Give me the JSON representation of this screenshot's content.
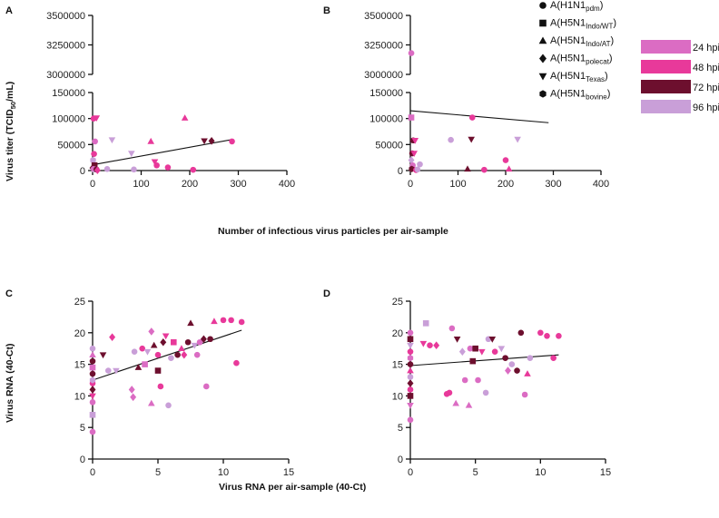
{
  "legend": {
    "subtypes": [
      {
        "base": "A(H1N1",
        "sub": "pdm",
        "marker": "circle"
      },
      {
        "base": "A(H5N1",
        "sub": "Indo/WT",
        "marker": "square"
      },
      {
        "base": "A(H5N1",
        "sub": "Indo/AT",
        "marker": "triangle-up"
      },
      {
        "base": "A(H5N1",
        "sub": "polecat",
        "marker": "diamond"
      },
      {
        "base": "A(H5N1",
        "sub": "Texas",
        "marker": "triangle-down"
      },
      {
        "base": "A(H5N1",
        "sub": "bovine",
        "marker": "hexagon"
      }
    ],
    "times": [
      {
        "label": "24 hpi",
        "color": "#db6cc3"
      },
      {
        "label": "48 hpi",
        "color": "#e8399a"
      },
      {
        "label": "72 hpi",
        "color": "#6d0f2e"
      },
      {
        "label": "96 hpi",
        "color": "#c99fd8"
      }
    ]
  },
  "shared_labels": {
    "top_xlabel": "Number of infectious virus particles per air-sample",
    "bottom_xlabel": "Virus RNA per air-sample (40-Ct)",
    "top_ylabel_main": "Virus titer (TCID",
    "top_ylabel_sub": "50",
    "top_ylabel_tail": "/mL)",
    "bottom_ylabel": "Virus RNA (40-Ct)"
  },
  "chart_data": [
    {
      "panel": "A",
      "type": "scatter",
      "broken_y_axis": true,
      "xlim": [
        0,
        400
      ],
      "xticks": [
        "0",
        "100",
        "200",
        "300",
        "400"
      ],
      "ylim_lower": [
        0,
        150000
      ],
      "yticks_lower": [
        "0",
        "50000",
        "100000",
        "150000"
      ],
      "ylim_upper": [
        3000000,
        3500000
      ],
      "yticks_upper": [
        "3000000",
        "3250000",
        "3500000"
      ],
      "fit_line": {
        "x": [
          0,
          290
        ],
        "y": [
          11000,
          60000
        ]
      },
      "points": [
        {
          "x": 2,
          "y": 100000,
          "m": "circle",
          "t": 1
        },
        {
          "x": 8,
          "y": 101000,
          "m": "triangle-down",
          "t": 1
        },
        {
          "x": 5,
          "y": 56000,
          "m": "circle",
          "t": 0
        },
        {
          "x": 3,
          "y": 32000,
          "m": "circle",
          "t": 1
        },
        {
          "x": 1,
          "y": 20000,
          "m": "hexagon",
          "t": 3
        },
        {
          "x": 4,
          "y": 10000,
          "m": "square",
          "t": 2
        },
        {
          "x": 0,
          "y": 5000,
          "m": "diamond",
          "t": 2
        },
        {
          "x": 2,
          "y": 3000,
          "m": "circle",
          "t": 0
        },
        {
          "x": 6,
          "y": 1500,
          "m": "triangle-up",
          "t": 3
        },
        {
          "x": 8,
          "y": 2000,
          "m": "circle",
          "t": 2
        },
        {
          "x": 10,
          "y": 500,
          "m": "diamond",
          "t": 1
        },
        {
          "x": 30,
          "y": 3000,
          "m": "circle",
          "t": 3
        },
        {
          "x": 40,
          "y": 59000,
          "m": "triangle-down",
          "t": 3
        },
        {
          "x": 80,
          "y": 33000,
          "m": "triangle-down",
          "t": 3
        },
        {
          "x": 85,
          "y": 2000,
          "m": "circle",
          "t": 3
        },
        {
          "x": 120,
          "y": 56000,
          "m": "triangle-up",
          "t": 1
        },
        {
          "x": 128,
          "y": 17000,
          "m": "triangle-down",
          "t": 1
        },
        {
          "x": 132,
          "y": 10000,
          "m": "circle",
          "t": 1
        },
        {
          "x": 155,
          "y": 6000,
          "m": "circle",
          "t": 1
        },
        {
          "x": 190,
          "y": 101000,
          "m": "triangle-up",
          "t": 1
        },
        {
          "x": 207,
          "y": 1500,
          "m": "circle",
          "t": 1
        },
        {
          "x": 230,
          "y": 57000,
          "m": "triangle-down",
          "t": 2
        },
        {
          "x": 245,
          "y": 57000,
          "m": "diamond",
          "t": 2
        },
        {
          "x": 287,
          "y": 56000,
          "m": "circle",
          "t": 1
        }
      ]
    },
    {
      "panel": "B",
      "type": "scatter",
      "broken_y_axis": true,
      "xlim": [
        0,
        400
      ],
      "xticks": [
        "0",
        "100",
        "200",
        "300",
        "400"
      ],
      "ylim_lower": [
        0,
        150000
      ],
      "yticks_lower": [
        "0",
        "50000",
        "100000",
        "150000"
      ],
      "ylim_upper": [
        3000000,
        3500000
      ],
      "yticks_upper": [
        "3000000",
        "3250000",
        "3500000"
      ],
      "fit_line": {
        "x": [
          0,
          290
        ],
        "y": [
          115000,
          92000
        ]
      },
      "points": [
        {
          "x": 2,
          "y": 3180000,
          "m": "circle",
          "t": 0
        },
        {
          "x": 2,
          "y": 102000,
          "m": "square",
          "t": 0
        },
        {
          "x": 6,
          "y": 58000,
          "m": "circle",
          "t": 2
        },
        {
          "x": 10,
          "y": 58000,
          "m": "triangle-down",
          "t": 1
        },
        {
          "x": 4,
          "y": 33000,
          "m": "circle",
          "t": 2
        },
        {
          "x": 8,
          "y": 33000,
          "m": "triangle-down",
          "t": 1
        },
        {
          "x": 2,
          "y": 20000,
          "m": "diamond",
          "t": 3
        },
        {
          "x": 5,
          "y": 10000,
          "m": "circle",
          "t": 0
        },
        {
          "x": 3,
          "y": 3000,
          "m": "hexagon",
          "t": 2
        },
        {
          "x": 12,
          "y": 1000,
          "m": "circle",
          "t": 1
        },
        {
          "x": 15,
          "y": 2000,
          "m": "circle",
          "t": 3
        },
        {
          "x": 20,
          "y": 12000,
          "m": "circle",
          "t": 3
        },
        {
          "x": 85,
          "y": 59000,
          "m": "circle",
          "t": 3
        },
        {
          "x": 120,
          "y": 3000,
          "m": "triangle-up",
          "t": 2
        },
        {
          "x": 128,
          "y": 60000,
          "m": "triangle-down",
          "t": 2
        },
        {
          "x": 130,
          "y": 102000,
          "m": "circle",
          "t": 1
        },
        {
          "x": 155,
          "y": 1500,
          "m": "circle",
          "t": 1
        },
        {
          "x": 200,
          "y": 20000,
          "m": "circle",
          "t": 1
        },
        {
          "x": 207,
          "y": 3000,
          "m": "triangle-up",
          "t": 1
        },
        {
          "x": 225,
          "y": 60000,
          "m": "triangle-down",
          "t": 3
        }
      ]
    },
    {
      "panel": "C",
      "type": "scatter",
      "xlim": [
        0,
        15
      ],
      "xticks": [
        "0",
        "5",
        "10",
        "15"
      ],
      "ylim": [
        0,
        25
      ],
      "yticks": [
        "0",
        "5",
        "10",
        "15",
        "20",
        "25"
      ],
      "fit_line": {
        "x": [
          0,
          11.4
        ],
        "y": [
          12.5,
          20.4
        ]
      },
      "points": [
        {
          "x": 0,
          "y": 4.3,
          "m": "circle",
          "t": 0
        },
        {
          "x": 0,
          "y": 7,
          "m": "square",
          "t": 3
        },
        {
          "x": 0,
          "y": 9,
          "m": "circle",
          "t": 0
        },
        {
          "x": 0,
          "y": 10,
          "m": "triangle-down",
          "t": 1
        },
        {
          "x": 0,
          "y": 11,
          "m": "diamond",
          "t": 2
        },
        {
          "x": 0,
          "y": 12,
          "m": "circle",
          "t": 1
        },
        {
          "x": 0,
          "y": 12.5,
          "m": "hexagon",
          "t": 3
        },
        {
          "x": 0,
          "y": 13.5,
          "m": "circle",
          "t": 2
        },
        {
          "x": 0,
          "y": 14.5,
          "m": "square",
          "t": 0
        },
        {
          "x": 0,
          "y": 15.5,
          "m": "circle",
          "t": 2
        },
        {
          "x": 0,
          "y": 16.5,
          "m": "triangle-up",
          "t": 0
        },
        {
          "x": 0,
          "y": 17.5,
          "m": "circle",
          "t": 3
        },
        {
          "x": 0.8,
          "y": 16.5,
          "m": "triangle-down",
          "t": 2
        },
        {
          "x": 1.2,
          "y": 14,
          "m": "circle",
          "t": 3
        },
        {
          "x": 1.5,
          "y": 19.3,
          "m": "diamond",
          "t": 1
        },
        {
          "x": 1.8,
          "y": 14,
          "m": "triangle-down",
          "t": 3
        },
        {
          "x": 3,
          "y": 11,
          "m": "diamond",
          "t": 0
        },
        {
          "x": 3.1,
          "y": 9.8,
          "m": "diamond",
          "t": 0
        },
        {
          "x": 3.2,
          "y": 17,
          "m": "circle",
          "t": 3
        },
        {
          "x": 3.5,
          "y": 14.5,
          "m": "triangle-up",
          "t": 2
        },
        {
          "x": 3.8,
          "y": 17.5,
          "m": "circle",
          "t": 1
        },
        {
          "x": 4.0,
          "y": 15,
          "m": "square",
          "t": 0
        },
        {
          "x": 4.2,
          "y": 17,
          "m": "triangle-down",
          "t": 3
        },
        {
          "x": 4.5,
          "y": 20.2,
          "m": "diamond",
          "t": 0
        },
        {
          "x": 4.5,
          "y": 8.8,
          "m": "triangle-up",
          "t": 0
        },
        {
          "x": 4.7,
          "y": 18,
          "m": "triangle-up",
          "t": 2
        },
        {
          "x": 5,
          "y": 16.5,
          "m": "circle",
          "t": 1
        },
        {
          "x": 5,
          "y": 14,
          "m": "square",
          "t": 2
        },
        {
          "x": 5.2,
          "y": 11.5,
          "m": "circle",
          "t": 1
        },
        {
          "x": 5.4,
          "y": 18.5,
          "m": "diamond",
          "t": 2
        },
        {
          "x": 5.6,
          "y": 19.5,
          "m": "triangle-down",
          "t": 1
        },
        {
          "x": 5.8,
          "y": 8.5,
          "m": "circle",
          "t": 3
        },
        {
          "x": 6,
          "y": 16,
          "m": "circle",
          "t": 3
        },
        {
          "x": 6.2,
          "y": 18.5,
          "m": "square",
          "t": 1
        },
        {
          "x": 6.5,
          "y": 16.5,
          "m": "circle",
          "t": 2
        },
        {
          "x": 6.8,
          "y": 17.5,
          "m": "triangle-up",
          "t": 1
        },
        {
          "x": 7,
          "y": 16.5,
          "m": "diamond",
          "t": 1
        },
        {
          "x": 7.3,
          "y": 18.5,
          "m": "circle",
          "t": 2
        },
        {
          "x": 7.5,
          "y": 21.5,
          "m": "triangle-up",
          "t": 2
        },
        {
          "x": 7.8,
          "y": 18,
          "m": "triangle-down",
          "t": 3
        },
        {
          "x": 8,
          "y": 16.5,
          "m": "circle",
          "t": 0
        },
        {
          "x": 8.2,
          "y": 18.5,
          "m": "circle",
          "t": 0
        },
        {
          "x": 8.5,
          "y": 19,
          "m": "diamond",
          "t": 2
        },
        {
          "x": 8.7,
          "y": 11.5,
          "m": "circle",
          "t": 0
        },
        {
          "x": 9,
          "y": 19,
          "m": "circle",
          "t": 2
        },
        {
          "x": 9.3,
          "y": 21.8,
          "m": "triangle-up",
          "t": 1
        },
        {
          "x": 10,
          "y": 22,
          "m": "circle",
          "t": 1
        },
        {
          "x": 10.6,
          "y": 22,
          "m": "circle",
          "t": 1
        },
        {
          "x": 11,
          "y": 15.2,
          "m": "circle",
          "t": 1
        },
        {
          "x": 11.4,
          "y": 21.7,
          "m": "circle",
          "t": 1
        }
      ]
    },
    {
      "panel": "D",
      "type": "scatter",
      "xlim": [
        0,
        15
      ],
      "xticks": [
        "0",
        "5",
        "10",
        "15"
      ],
      "ylim": [
        0,
        25
      ],
      "yticks": [
        "0",
        "5",
        "10",
        "15",
        "20",
        "25"
      ],
      "fit_line": {
        "x": [
          0,
          11.4
        ],
        "y": [
          14.8,
          16.5
        ]
      },
      "points": [
        {
          "x": 0,
          "y": 6.2,
          "m": "circle",
          "t": 0
        },
        {
          "x": 0,
          "y": 8.5,
          "m": "triangle-down",
          "t": 0
        },
        {
          "x": 0,
          "y": 10,
          "m": "square",
          "t": 2
        },
        {
          "x": 0,
          "y": 11,
          "m": "circle",
          "t": 1
        },
        {
          "x": 0,
          "y": 12,
          "m": "diamond",
          "t": 2
        },
        {
          "x": 0,
          "y": 13,
          "m": "circle",
          "t": 3
        },
        {
          "x": 0,
          "y": 14,
          "m": "triangle-up",
          "t": 1
        },
        {
          "x": 0,
          "y": 15,
          "m": "circle",
          "t": 2
        },
        {
          "x": 0,
          "y": 16,
          "m": "hexagon",
          "t": 0
        },
        {
          "x": 0,
          "y": 17,
          "m": "circle",
          "t": 1
        },
        {
          "x": 0,
          "y": 18,
          "m": "triangle-down",
          "t": 3
        },
        {
          "x": 0,
          "y": 19,
          "m": "square",
          "t": 2
        },
        {
          "x": 0,
          "y": 20,
          "m": "circle",
          "t": 0
        },
        {
          "x": 1,
          "y": 18.3,
          "m": "triangle-down",
          "t": 1
        },
        {
          "x": 1.2,
          "y": 21.5,
          "m": "square",
          "t": 3
        },
        {
          "x": 1.5,
          "y": 18,
          "m": "circle",
          "t": 1
        },
        {
          "x": 2,
          "y": 18,
          "m": "diamond",
          "t": 1
        },
        {
          "x": 2.8,
          "y": 10.3,
          "m": "circle",
          "t": 1
        },
        {
          "x": 3,
          "y": 10.5,
          "m": "circle",
          "t": 1
        },
        {
          "x": 3.2,
          "y": 20.7,
          "m": "circle",
          "t": 0
        },
        {
          "x": 3.5,
          "y": 8.8,
          "m": "triangle-up",
          "t": 0
        },
        {
          "x": 3.6,
          "y": 19,
          "m": "triangle-down",
          "t": 2
        },
        {
          "x": 4,
          "y": 17,
          "m": "diamond",
          "t": 3
        },
        {
          "x": 4.2,
          "y": 12.5,
          "m": "circle",
          "t": 0
        },
        {
          "x": 4.5,
          "y": 8.5,
          "m": "triangle-up",
          "t": 0
        },
        {
          "x": 4.6,
          "y": 17.5,
          "m": "circle",
          "t": 0
        },
        {
          "x": 4.8,
          "y": 15.5,
          "m": "square",
          "t": 2
        },
        {
          "x": 5,
          "y": 17.5,
          "m": "square",
          "t": 2
        },
        {
          "x": 5.2,
          "y": 12.5,
          "m": "circle",
          "t": 0
        },
        {
          "x": 5.5,
          "y": 17,
          "m": "triangle-down",
          "t": 1
        },
        {
          "x": 5.8,
          "y": 10.5,
          "m": "circle",
          "t": 3
        },
        {
          "x": 6,
          "y": 19,
          "m": "circle",
          "t": 3
        },
        {
          "x": 6.3,
          "y": 19,
          "m": "triangle-down",
          "t": 2
        },
        {
          "x": 6.5,
          "y": 17,
          "m": "circle",
          "t": 1
        },
        {
          "x": 7,
          "y": 17.5,
          "m": "triangle-down",
          "t": 3
        },
        {
          "x": 7.3,
          "y": 16,
          "m": "circle",
          "t": 2
        },
        {
          "x": 7.5,
          "y": 14,
          "m": "diamond",
          "t": 0
        },
        {
          "x": 7.8,
          "y": 15,
          "m": "circle",
          "t": 3
        },
        {
          "x": 8.2,
          "y": 14,
          "m": "circle",
          "t": 2
        },
        {
          "x": 8.5,
          "y": 20,
          "m": "circle",
          "t": 2
        },
        {
          "x": 8.8,
          "y": 10.2,
          "m": "circle",
          "t": 0
        },
        {
          "x": 9,
          "y": 13.5,
          "m": "triangle-up",
          "t": 1
        },
        {
          "x": 9.2,
          "y": 16,
          "m": "circle",
          "t": 3
        },
        {
          "x": 10,
          "y": 20,
          "m": "circle",
          "t": 1
        },
        {
          "x": 10.5,
          "y": 19.5,
          "m": "circle",
          "t": 1
        },
        {
          "x": 11,
          "y": 16,
          "m": "circle",
          "t": 1
        },
        {
          "x": 11.4,
          "y": 19.5,
          "m": "circle",
          "t": 1
        }
      ]
    }
  ]
}
